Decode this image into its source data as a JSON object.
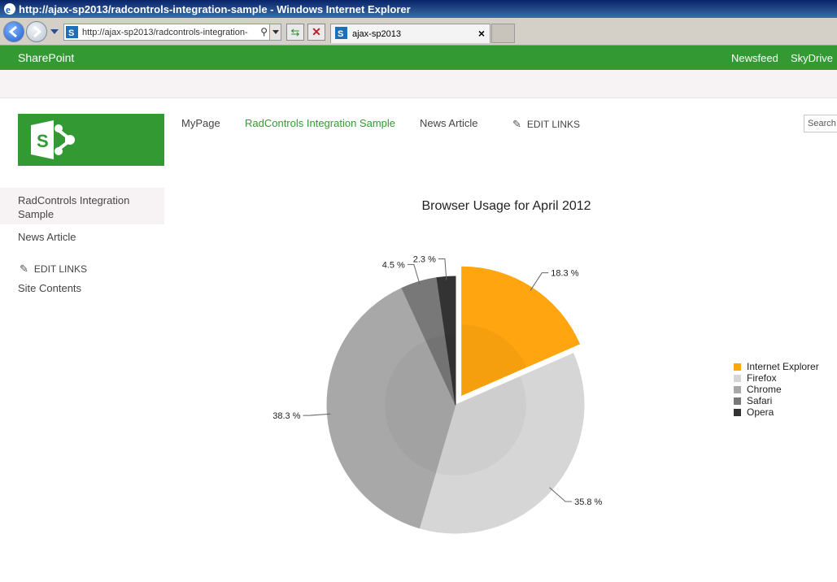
{
  "window": {
    "title": "http://ajax-sp2013/radcontrols-integration-sample - Windows Internet Explorer",
    "address": "http://ajax-sp2013/radcontrols-integration-",
    "tab_label": "ajax-sp2013",
    "tab_close": "×"
  },
  "suitebar": {
    "brand": "SharePoint",
    "links": [
      "Newsfeed",
      "SkyDrive"
    ],
    "color": "#339933"
  },
  "topnav": {
    "items": [
      "MyPage",
      "RadControls Integration Sample",
      "News Article"
    ],
    "selected_index": 1,
    "edit_links": "EDIT LINKS",
    "search_placeholder": "Search"
  },
  "leftnav": {
    "items": [
      "RadControls Integration Sample",
      "News Article"
    ],
    "edit_links": "EDIT LINKS",
    "site_contents": "Site Contents"
  },
  "chart_data": {
    "type": "pie",
    "title": "Browser Usage for April 2012",
    "categories": [
      "Internet Explorer",
      "Firefox",
      "Chrome",
      "Safari",
      "Opera"
    ],
    "values": [
      18.3,
      35.8,
      38.3,
      4.5,
      2.3
    ],
    "labels": [
      "18.3 %",
      "35.8 %",
      "38.3 %",
      "4.5 %",
      "2.3 %"
    ],
    "colors": [
      "#ffa50f",
      "#d6d6d6",
      "#a8a8a8",
      "#787878",
      "#333333"
    ],
    "exploded_index": 0,
    "legend_position": "right"
  }
}
